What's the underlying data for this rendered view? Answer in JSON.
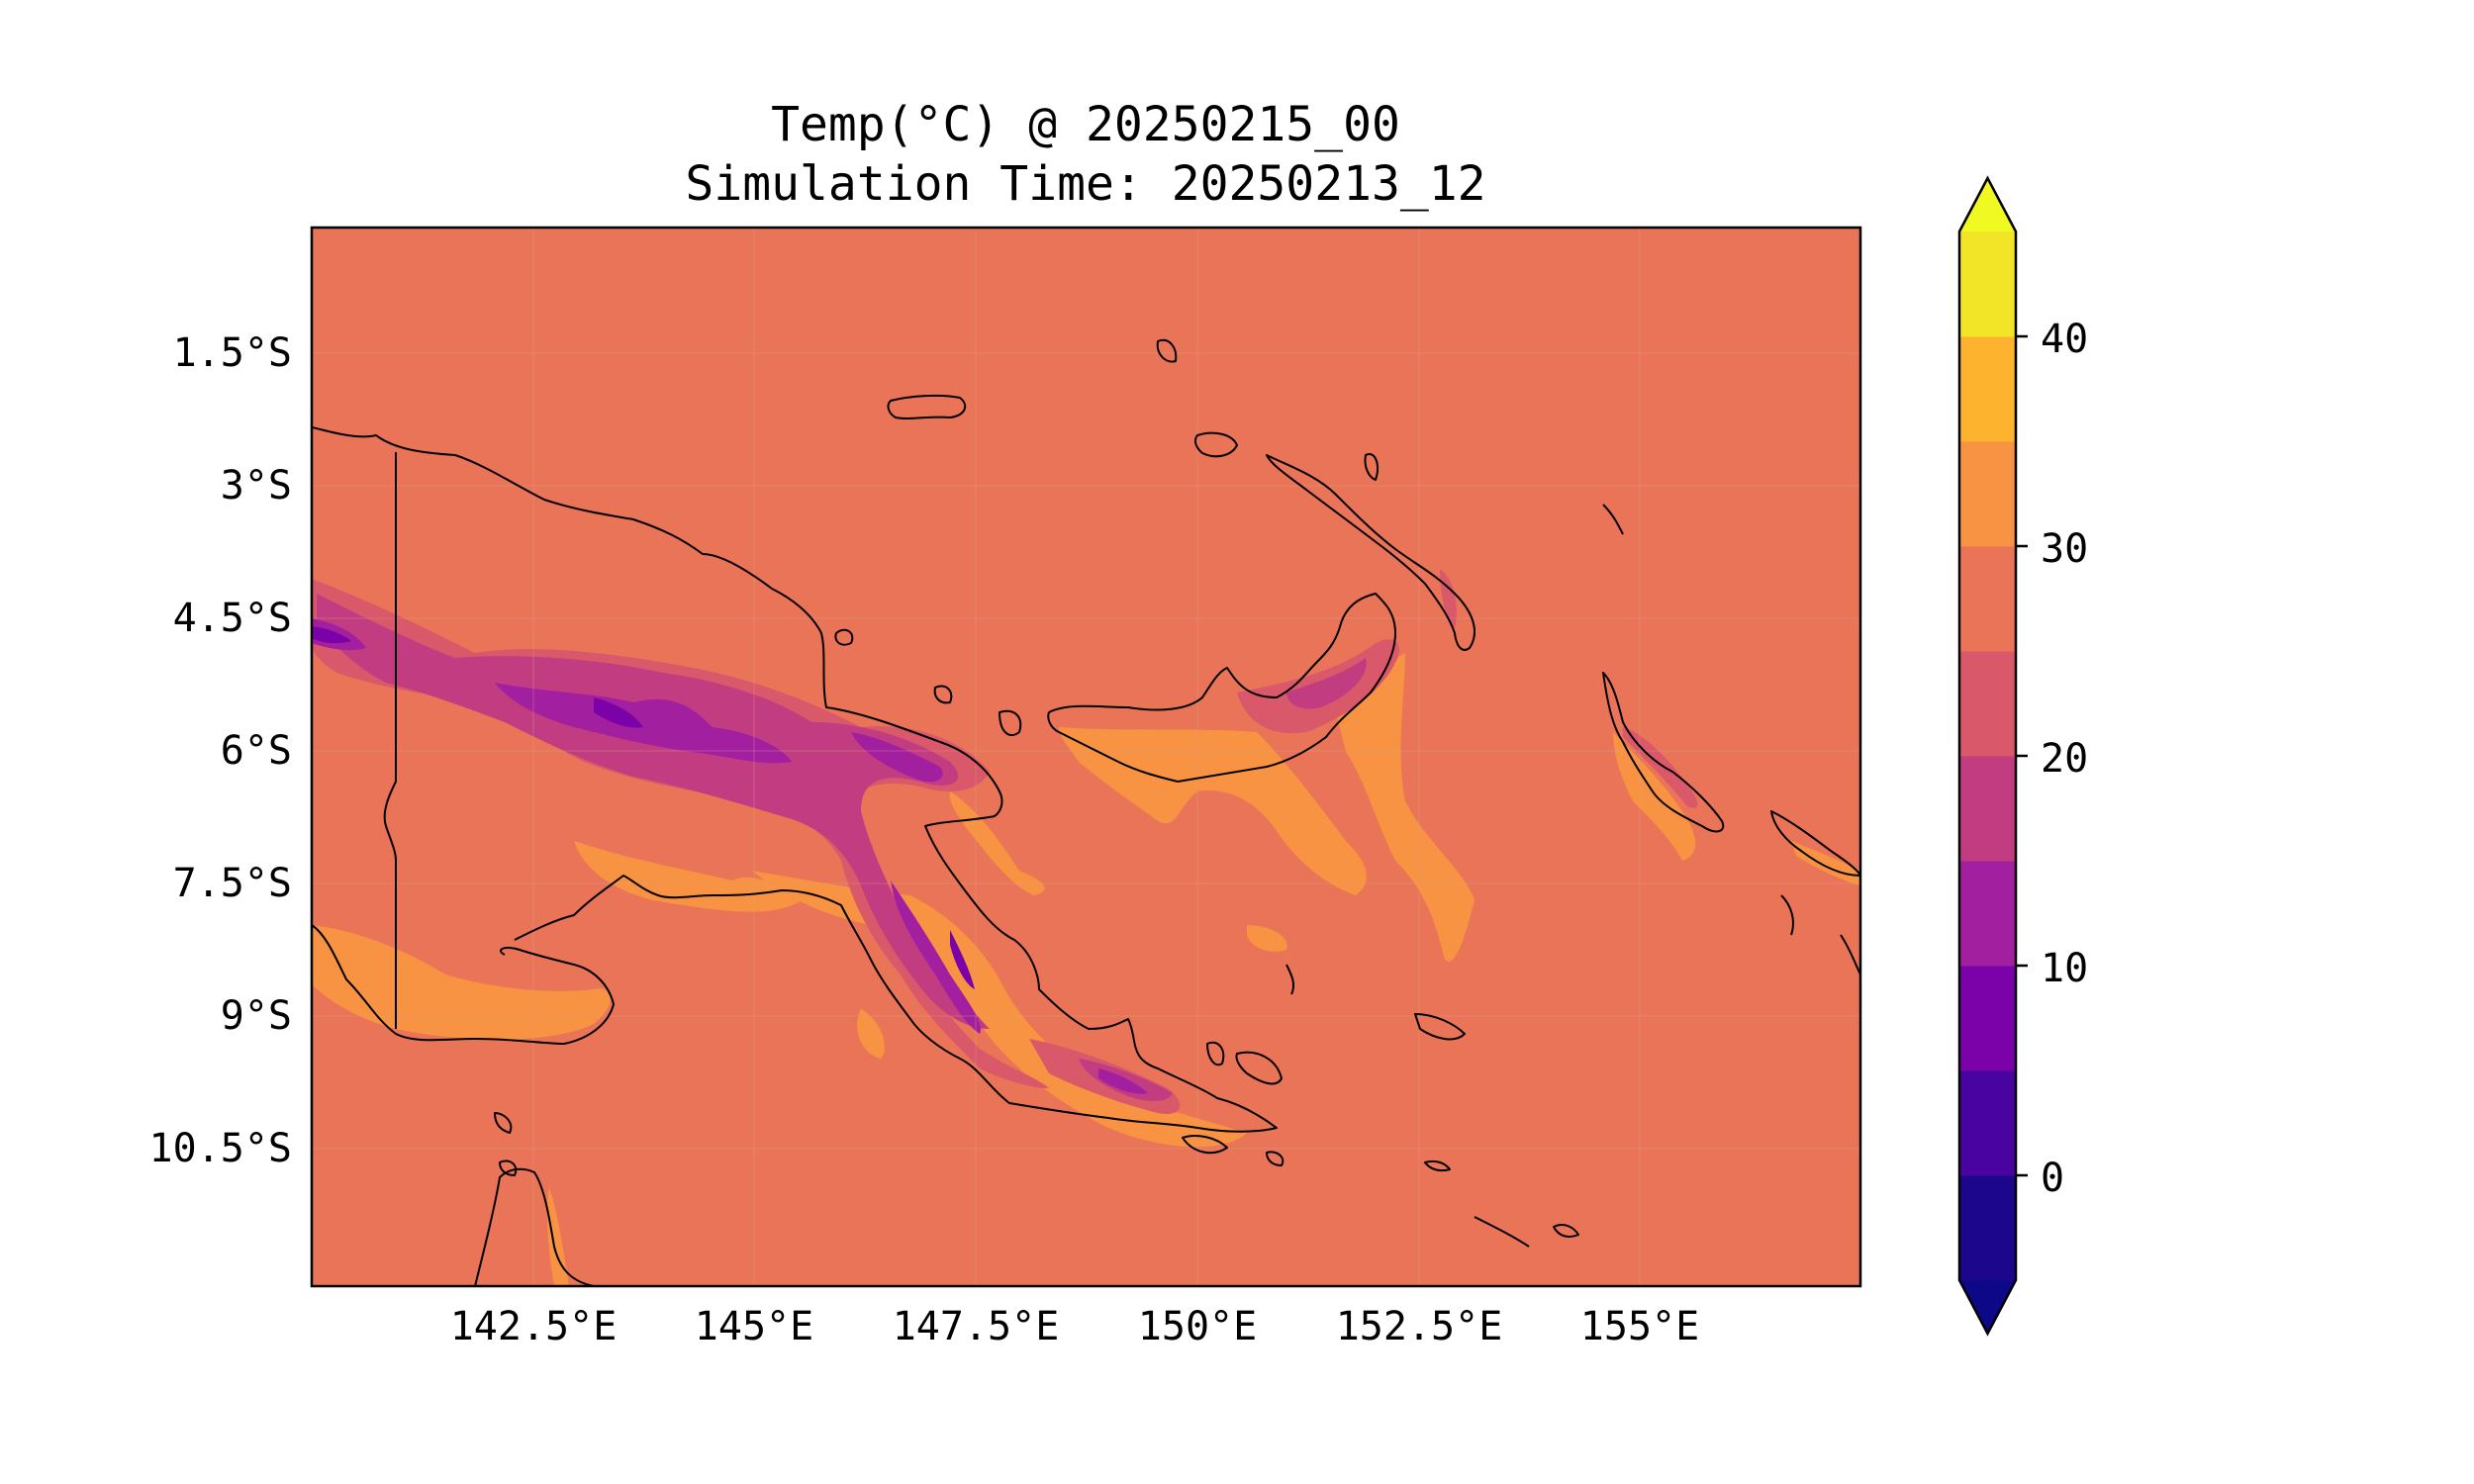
{
  "title": {
    "line1": "Temp(°C) @ 20250215_00",
    "line2": "Simulation Time: 20250213_12"
  },
  "map": {
    "lat_ticks": [
      "1.5°S",
      "3°S",
      "4.5°S",
      "6°S",
      "7.5°S",
      "9°S",
      "10.5°S"
    ],
    "lon_ticks": [
      "142.5°E",
      "145°E",
      "147.5°E",
      "150°E",
      "152.5°E",
      "155°E"
    ],
    "background_color": "#ea7458",
    "coastline_color": "#000000"
  },
  "colorbar": {
    "tick_labels": [
      "0",
      "10",
      "20",
      "30",
      "40"
    ],
    "levels": [
      -5,
      0,
      5,
      10,
      15,
      20,
      25,
      30,
      35,
      40,
      45
    ],
    "colors": [
      "#1b068c",
      "#4903a0",
      "#7a02a8",
      "#a21fa0",
      "#c23c81",
      "#d9586a",
      "#ea7458",
      "#f79342",
      "#fdb32e",
      "#f2e527"
    ],
    "under_color": "#0d0887",
    "over_color": "#f0f921",
    "extend": "both"
  },
  "chart_data": {
    "type": "heatmap",
    "title": "Temp(°C) @ 20250215_00",
    "subtitle": "Simulation Time: 20250213_12",
    "xlabel": "",
    "ylabel": "",
    "xlim_deg_e": [
      140.0,
      157.5
    ],
    "ylim_deg_s": [
      12.0,
      0.0
    ],
    "x_ticks": [
      "142.5°E",
      "145°E",
      "147.5°E",
      "150°E",
      "152.5°E",
      "155°E"
    ],
    "y_ticks": [
      "1.5°S",
      "3°S",
      "4.5°S",
      "6°S",
      "7.5°S",
      "9°S",
      "10.5°S"
    ],
    "colorbar_ticks": [
      0,
      10,
      20,
      30,
      40
    ],
    "colorbar_range": [
      -5,
      45
    ],
    "dominant_value_range": [
      25,
      30
    ],
    "grid": true
  }
}
